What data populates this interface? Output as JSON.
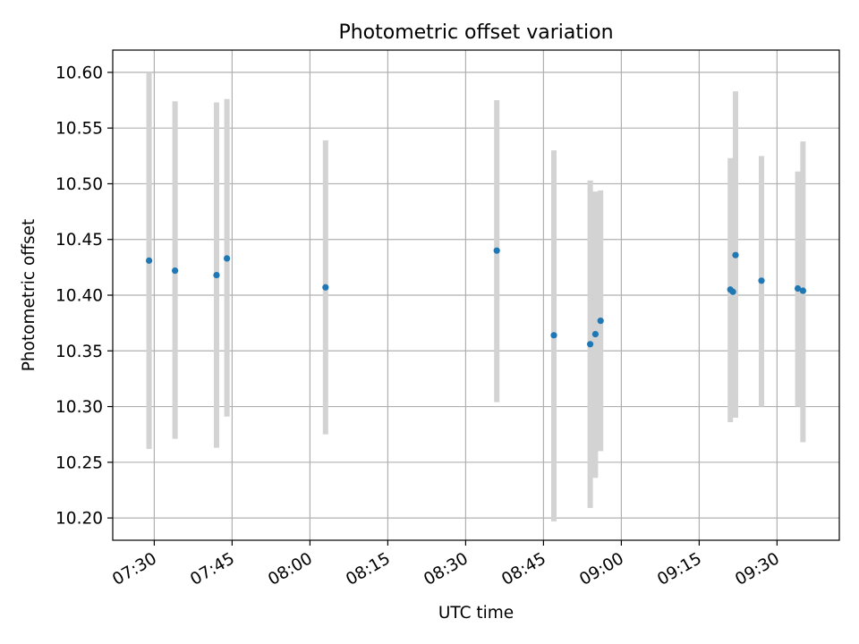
{
  "chart_data": {
    "type": "scatter",
    "title": "Photometric offset variation",
    "xlabel": "UTC time",
    "ylabel": "Photometric offset",
    "x_tick_labels": [
      "07:30",
      "07:45",
      "08:00",
      "08:15",
      "08:30",
      "08:45",
      "09:00",
      "09:15",
      "09:30"
    ],
    "y_tick_labels": [
      "10.20",
      "10.25",
      "10.30",
      "10.35",
      "10.40",
      "10.45",
      "10.50",
      "10.55",
      "10.60"
    ],
    "xlim": [
      "07:22",
      "09:42"
    ],
    "ylim": [
      10.18,
      10.62
    ],
    "grid": true,
    "colors": {
      "point": "#1f77b4",
      "errorbar": "#d3d3d3",
      "grid": "#b0b0b0"
    },
    "series": [
      {
        "points": [
          {
            "time": "07:29",
            "value": 10.431,
            "lower": 10.262,
            "upper": 10.6
          },
          {
            "time": "07:34",
            "value": 10.422,
            "lower": 10.271,
            "upper": 10.574
          },
          {
            "time": "07:42",
            "value": 10.418,
            "lower": 10.263,
            "upper": 10.573
          },
          {
            "time": "07:44",
            "value": 10.433,
            "lower": 10.291,
            "upper": 10.576
          },
          {
            "time": "08:03",
            "value": 10.407,
            "lower": 10.275,
            "upper": 10.539
          },
          {
            "time": "08:36",
            "value": 10.44,
            "lower": 10.304,
            "upper": 10.575
          },
          {
            "time": "08:47",
            "value": 10.364,
            "lower": 10.197,
            "upper": 10.53
          },
          {
            "time": "08:54",
            "value": 10.356,
            "lower": 10.209,
            "upper": 10.503
          },
          {
            "time": "08:55",
            "value": 10.365,
            "lower": 10.236,
            "upper": 10.493
          },
          {
            "time": "08:56",
            "value": 10.377,
            "lower": 10.26,
            "upper": 10.494
          },
          {
            "time": "09:21",
            "value": 10.405,
            "lower": 10.286,
            "upper": 10.523
          },
          {
            "time": "09:21.5",
            "value": 10.403,
            "lower": 10.306,
            "upper": 10.501
          },
          {
            "time": "09:22",
            "value": 10.436,
            "lower": 10.29,
            "upper": 10.583
          },
          {
            "time": "09:27",
            "value": 10.413,
            "lower": 10.3,
            "upper": 10.525
          },
          {
            "time": "09:34",
            "value": 10.406,
            "lower": 10.3,
            "upper": 10.511
          },
          {
            "time": "09:35",
            "value": 10.404,
            "lower": 10.268,
            "upper": 10.538
          }
        ]
      }
    ]
  }
}
